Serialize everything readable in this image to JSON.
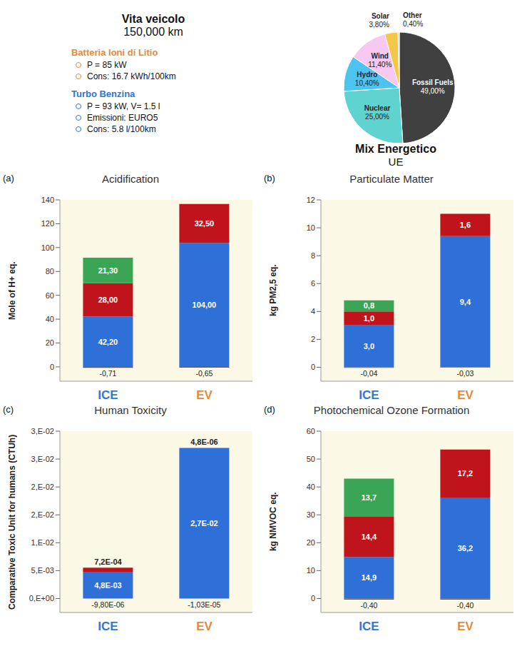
{
  "header": {
    "title": "Vita veicolo",
    "subtitle": "150,000 km",
    "groups": [
      {
        "title": "Batteria Ioni di Litio",
        "color": "#e58a3a",
        "items": [
          "P = 85 kW",
          "Cons: 16.7 kWh/100km"
        ]
      },
      {
        "title": "Turbo Benzina",
        "color": "#2e75d6",
        "items": [
          "P = 93 kW, V= 1.5 l",
          "Emissioni: EURO5",
          "Cons: 5.8 l/100km"
        ]
      }
    ]
  },
  "chart_data": [
    {
      "type": "pie",
      "title": "Mix Energetico",
      "subtitle": "UE",
      "categories": [
        "Fossil Fuels",
        "Nuclear",
        "Hydro",
        "Wind",
        "Solar",
        "Other"
      ],
      "values": [
        49,
        25,
        10.4,
        11.4,
        3.8,
        0.4
      ],
      "value_labels": [
        "49,00%",
        "25,00%",
        "10,40%",
        "11,40%",
        "3,80%",
        "0,40%"
      ],
      "colors": [
        "#404040",
        "#5fd3cf",
        "#4dc3f0",
        "#f7c8f2",
        "#f5c748",
        "#bdbdbd"
      ],
      "data_labels": true
    },
    {
      "type": "bar",
      "panel": "(a)",
      "title": "Acidification",
      "ylabel": "Mole of H+ eq.",
      "categories": [
        "ICE",
        "EV"
      ],
      "stacked": true,
      "data_labels": true,
      "grid": false,
      "ylim": [
        -12,
        140
      ],
      "yticks": [
        0,
        20,
        40,
        60,
        80,
        100,
        120,
        140
      ],
      "series": [
        {
          "color": "#2f6fd8",
          "values": [
            42.2,
            104
          ],
          "value_labels": [
            "42,20",
            "104,00"
          ]
        },
        {
          "color": "#c0141c",
          "values": [
            28,
            32.5
          ],
          "value_labels": [
            "28,00",
            "32,50"
          ]
        },
        {
          "color": "#3aa655",
          "values": [
            21.3,
            null
          ],
          "value_labels": [
            "21,30",
            null
          ]
        },
        {
          "color": "#595959",
          "values": [
            -0.71,
            -0.65
          ],
          "value_labels": [
            "-0,71",
            "-0,65"
          ]
        }
      ]
    },
    {
      "type": "bar",
      "panel": "(b)",
      "title": "Particulate Matter",
      "ylabel": "kg PM2,5 eq.",
      "categories": [
        "ICE",
        "EV"
      ],
      "stacked": true,
      "data_labels": true,
      "grid": false,
      "ylim": [
        -1,
        12
      ],
      "yticks": [
        0,
        2,
        4,
        6,
        8,
        10,
        12
      ],
      "series": [
        {
          "color": "#2f6fd8",
          "values": [
            3.0,
            9.4
          ],
          "value_labels": [
            "3,0",
            "9,4"
          ]
        },
        {
          "color": "#c0141c",
          "values": [
            1.0,
            1.6
          ],
          "value_labels": [
            "1,0",
            "1,6"
          ]
        },
        {
          "color": "#3aa655",
          "values": [
            0.8,
            null
          ],
          "value_labels": [
            "0,8",
            null
          ]
        },
        {
          "color": "#595959",
          "values": [
            -0.04,
            -0.03
          ],
          "value_labels": [
            "-0,04",
            "-0,03"
          ]
        }
      ]
    },
    {
      "type": "bar",
      "panel": "(c)",
      "title": "Human Toxicity",
      "ylabel": "Comparative Toxic Unit for humans (CTUh)",
      "categories": [
        "ICE",
        "EV"
      ],
      "stacked": true,
      "data_labels": true,
      "grid": false,
      "ylim": [
        -0.0025,
        0.03
      ],
      "yticks": [
        {
          "value": 0,
          "label": "0,E+00"
        },
        {
          "value": 0.005,
          "label": "5,E-03"
        },
        {
          "value": 0.01,
          "label": "1,E-02"
        },
        {
          "value": 0.015,
          "label": "2,E-02"
        },
        {
          "value": 0.02,
          "label": "2,E-02"
        },
        {
          "value": 0.025,
          "label": "3,E-02"
        },
        {
          "value": 0.03,
          "label": "3,E-02"
        }
      ],
      "series": [
        {
          "color": "#2f6fd8",
          "values": [
            0.0048,
            0.027
          ],
          "value_labels": [
            "4,8E-03",
            "2,7E-02"
          ]
        },
        {
          "color": "#c0141c",
          "values": [
            0.00072,
            4.8e-06
          ],
          "value_labels": [
            "7,2E-04",
            "4,8E-06"
          ]
        },
        {
          "color": "#595959",
          "values": [
            -9.8e-06,
            -1.03e-05
          ],
          "value_labels": [
            "-9,80E-06",
            "-1,03E-05"
          ]
        }
      ]
    },
    {
      "type": "bar",
      "panel": "(d)",
      "title": "Photochemical Ozone Formation",
      "ylabel": "kg NMVOC eq.",
      "categories": [
        "ICE",
        "EV"
      ],
      "stacked": true,
      "data_labels": true,
      "grid": false,
      "ylim": [
        -5,
        60
      ],
      "yticks": [
        0,
        10,
        20,
        30,
        40,
        50,
        60
      ],
      "series": [
        {
          "color": "#2f6fd8",
          "values": [
            14.9,
            36.2
          ],
          "value_labels": [
            "14,9",
            "36,2"
          ]
        },
        {
          "color": "#c0141c",
          "values": [
            14.4,
            17.2
          ],
          "value_labels": [
            "14,4",
            "17,2"
          ]
        },
        {
          "color": "#3aa655",
          "values": [
            13.7,
            null
          ],
          "value_labels": [
            "13,7",
            null
          ]
        },
        {
          "color": "#595959",
          "values": [
            -0.4,
            -0.4
          ],
          "value_labels": [
            "-0,40",
            "-0,40"
          ]
        }
      ]
    }
  ]
}
